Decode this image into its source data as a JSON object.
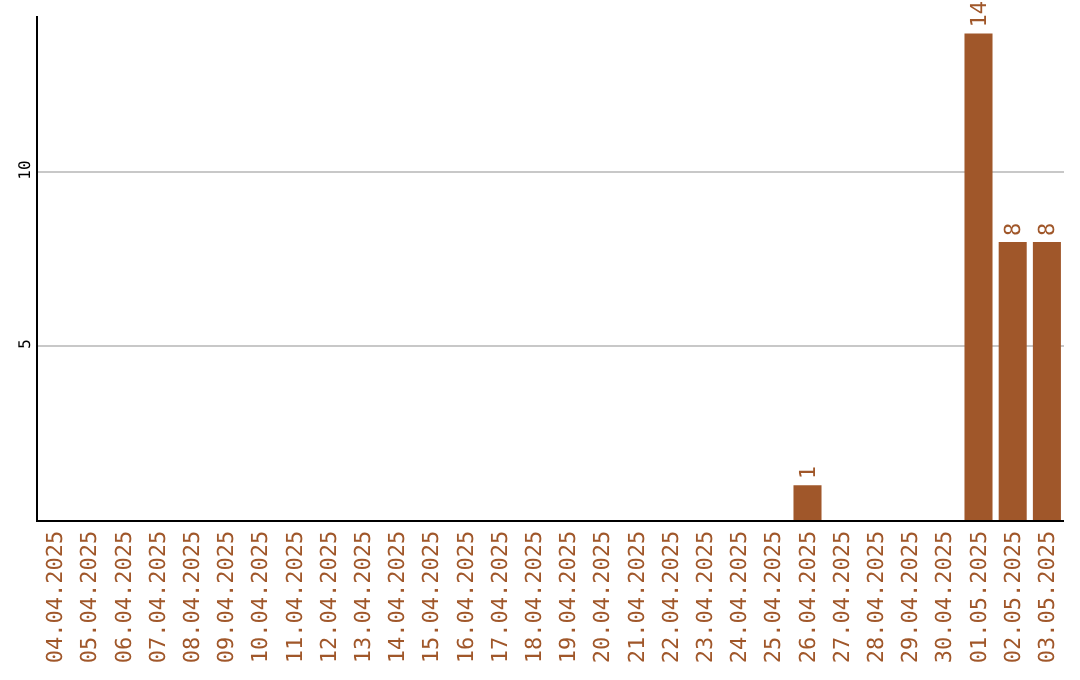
{
  "chart_data": {
    "type": "bar",
    "categories": [
      "04.04.2025",
      "05.04.2025",
      "06.04.2025",
      "07.04.2025",
      "08.04.2025",
      "09.04.2025",
      "10.04.2025",
      "11.04.2025",
      "12.04.2025",
      "13.04.2025",
      "14.04.2025",
      "15.04.2025",
      "16.04.2025",
      "17.04.2025",
      "18.04.2025",
      "19.04.2025",
      "20.04.2025",
      "21.04.2025",
      "22.04.2025",
      "23.04.2025",
      "24.04.2025",
      "25.04.2025",
      "26.04.2025",
      "27.04.2025",
      "28.04.2025",
      "29.04.2025",
      "30.04.2025",
      "01.05.2025",
      "02.05.2025",
      "03.05.2025"
    ],
    "values": [
      0,
      0,
      0,
      0,
      0,
      0,
      0,
      0,
      0,
      0,
      0,
      0,
      0,
      0,
      0,
      0,
      0,
      0,
      0,
      0,
      0,
      0,
      1,
      0,
      0,
      0,
      0,
      14,
      8,
      8
    ],
    "value_labels": [
      null,
      null,
      null,
      null,
      null,
      null,
      null,
      null,
      null,
      null,
      null,
      null,
      null,
      null,
      null,
      null,
      null,
      null,
      null,
      null,
      null,
      null,
      "1",
      null,
      null,
      null,
      null,
      "14",
      "8",
      "8"
    ],
    "color": "#a0572a",
    "ylim": [
      0,
      14.5
    ],
    "yticks": [
      5,
      10
    ],
    "grid": "y",
    "legend": false
  }
}
